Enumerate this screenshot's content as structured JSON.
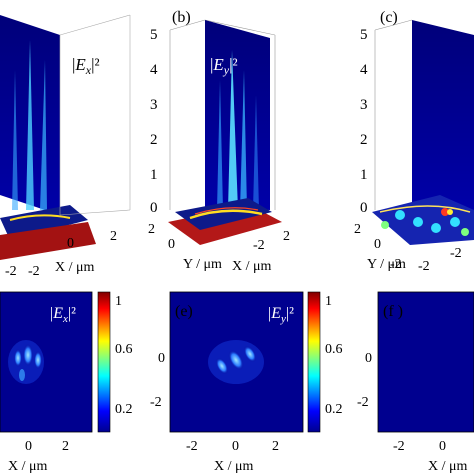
{
  "panels": {
    "b": {
      "label": "(b)",
      "field_label": "|E_y|²"
    },
    "c": {
      "label": "(c)"
    },
    "d": {
      "field_label": "|E_x|²"
    },
    "e": {
      "label": "(e)",
      "field_label": "|E_y|²"
    },
    "f": {
      "label": "(f )"
    }
  },
  "field_labels": {
    "ex_top": {
      "bar": "|",
      "var": "E",
      "sub": "x",
      "tail": "|²"
    },
    "ey_top": {
      "bar": "|",
      "var": "E",
      "sub": "y",
      "tail": "|²"
    }
  },
  "axes": {
    "z_ticks": [
      "5",
      "4",
      "3",
      "2",
      "1",
      "0"
    ],
    "x_ticks_3d": [
      "-2",
      "0",
      "2"
    ],
    "y_ticks_3d": [
      "2",
      "0",
      "-2"
    ],
    "x_ticks_2d": [
      "-2",
      "0",
      "2"
    ],
    "y_ticks_2d": [
      "0",
      "-2"
    ],
    "colorbar_ticks": [
      "1",
      "0.6",
      "0.2"
    ],
    "x_unit_label": "X / μm",
    "y_unit_label": "Y / μm"
  },
  "colormap": {
    "name": "jet",
    "stops": [
      "#00008f",
      "#0000ff",
      "#00ffff",
      "#ffff00",
      "#ff0000",
      "#800000"
    ]
  },
  "field_data": {
    "colorbar_range": [
      0,
      1
    ],
    "d_pattern": "three vertical lobes near center (intensity ~0.6)",
    "e_pattern": "three diagonal lobes near center (intensity ~0.6)",
    "f_pattern": "uniform low intensity"
  }
}
